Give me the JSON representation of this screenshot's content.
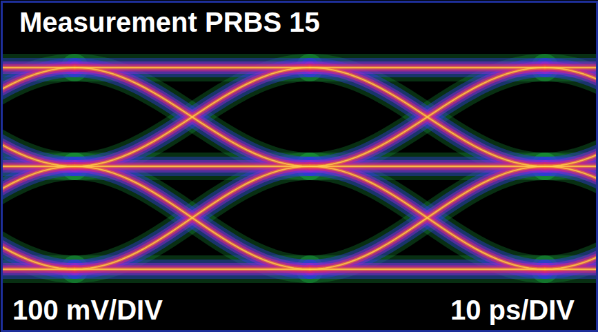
{
  "chart_data": {
    "type": "eye",
    "title": "Measurement PRBS 15",
    "xlabel": "10 ps/DIV",
    "ylabel": "100 mV/DIV",
    "xlim": [
      0,
      100
    ],
    "ylim": [
      -400,
      400
    ],
    "levels": [
      240,
      0,
      -250
    ],
    "crossings": [
      32,
      71.5
    ],
    "tick_labels": false,
    "grid": false
  }
}
